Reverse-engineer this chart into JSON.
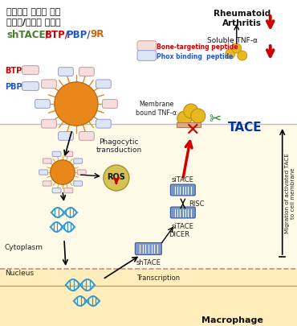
{
  "title_line1": "류마티스 관절염 치료",
  "title_line2": "유전자/전달체 복합체",
  "title_sh": "shTACE",
  "title_btp": "BTP",
  "title_pbp": "PBP",
  "title_9r": "9R",
  "color_sh": "#4a7c2f",
  "color_btp": "#cc0000",
  "color_pbp": "#2255cc",
  "color_9r": "#cc6600",
  "bg_white": "#ffffff",
  "bg_cell": "#fffae8",
  "bg_nucleus": "#ffeebb",
  "border_dashed": "#cc8888",
  "text_main": "#222222",
  "label_btp": "BTP",
  "label_pbp": "PBP",
  "legend_bone": "Bone-targeting peptide",
  "legend_phox": "Phox binding  peptide",
  "label_membrane_tnf": "Membrane\nbound TNF-α",
  "label_soluble_tnf": "Soluble TNF-α",
  "label_ra": "Rheumatoid\nArthritis",
  "label_tace": "TACE",
  "label_phagocytic": "Phagocytic\ntransduction",
  "label_ros": "ROS",
  "label_sitace1": "siTACE",
  "label_risc": "RISC",
  "label_sitace2": "siTACE",
  "label_dicer": "DICER",
  "label_shtace": "shTACE",
  "label_cytoplasm": "Cytoplasm",
  "label_nucleus": "Nucleus",
  "label_transcription": "Transcription",
  "label_macrophage": "Macrophage",
  "label_migration": "Migration of activated TACE\nto cell membrane",
  "orange_np": "#e8871a",
  "gold_sphere": "#e8b820",
  "red_arrow": "#cc0000",
  "blue_dna": "#3399cc",
  "rna_blue": "#5588cc",
  "figsize": [
    3.7,
    4.06
  ],
  "dpi": 100
}
